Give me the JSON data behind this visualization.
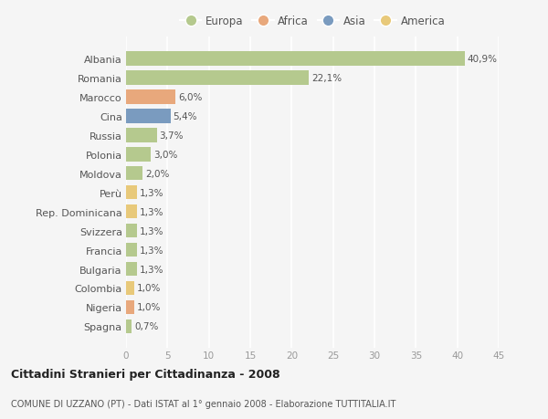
{
  "categories": [
    "Albania",
    "Romania",
    "Marocco",
    "Cina",
    "Russia",
    "Polonia",
    "Moldova",
    "Perù",
    "Rep. Dominicana",
    "Svizzera",
    "Francia",
    "Bulgaria",
    "Colombia",
    "Nigeria",
    "Spagna"
  ],
  "values": [
    40.9,
    22.1,
    6.0,
    5.4,
    3.7,
    3.0,
    2.0,
    1.3,
    1.3,
    1.3,
    1.3,
    1.3,
    1.0,
    1.0,
    0.7
  ],
  "labels": [
    "40,9%",
    "22,1%",
    "6,0%",
    "5,4%",
    "3,7%",
    "3,0%",
    "2,0%",
    "1,3%",
    "1,3%",
    "1,3%",
    "1,3%",
    "1,3%",
    "1,0%",
    "1,0%",
    "0,7%"
  ],
  "colors": [
    "#b5c98e",
    "#b5c98e",
    "#e8a87c",
    "#7a9bbf",
    "#b5c98e",
    "#b5c98e",
    "#b5c98e",
    "#e8c97a",
    "#e8c97a",
    "#b5c98e",
    "#b5c98e",
    "#b5c98e",
    "#e8c97a",
    "#e8a87c",
    "#b5c98e"
  ],
  "legend": [
    {
      "label": "Europa",
      "color": "#b5c98e"
    },
    {
      "label": "Africa",
      "color": "#e8a87c"
    },
    {
      "label": "Asia",
      "color": "#7a9bbf"
    },
    {
      "label": "America",
      "color": "#e8c97a"
    }
  ],
  "title": "Cittadini Stranieri per Cittadinanza - 2008",
  "subtitle": "COMUNE DI UZZANO (PT) - Dati ISTAT al 1° gennaio 2008 - Elaborazione TUTTITALIA.IT",
  "xlim": [
    0,
    45
  ],
  "xticks": [
    0,
    5,
    10,
    15,
    20,
    25,
    30,
    35,
    40,
    45
  ],
  "background_color": "#f5f5f5",
  "grid_color": "#ffffff",
  "bar_height": 0.75
}
